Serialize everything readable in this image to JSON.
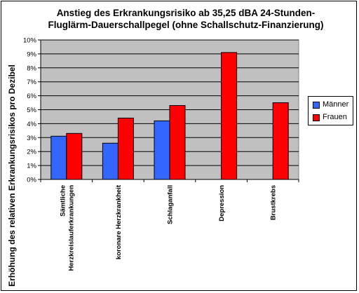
{
  "chart_data": {
    "type": "bar",
    "title_line1": "Anstieg des Erkrankungsrisiko ab 35,25 dBA 24-Stunden-",
    "title_line2": "Fluglärm-Dauerschallpegel (ohne Schallschutz-Finanzierung)",
    "ylabel": "Erhöhung des relativen Erkrankungsrisikos pro Dezibel",
    "xlabel": "",
    "categories": [
      [
        "Sämtliche",
        "Herzkreislauferkrankungen"
      ],
      [
        "koronare Herzkrankheit"
      ],
      [
        "Schlaganfall"
      ],
      [
        "Depression"
      ],
      [
        "Brustkrebs"
      ]
    ],
    "series": [
      {
        "name": "Männer",
        "color": "#3366ff",
        "values": [
          3.1,
          2.6,
          4.2,
          null,
          null
        ]
      },
      {
        "name": "Frauen",
        "color": "#ff0000",
        "values": [
          3.3,
          4.4,
          5.3,
          9.1,
          5.5
        ]
      }
    ],
    "ylim": [
      0,
      10
    ],
    "ytick_step": 1,
    "ytick_suffix": "%",
    "grid": true,
    "plot_background": "#c0c0c0",
    "legend_position": "right"
  }
}
